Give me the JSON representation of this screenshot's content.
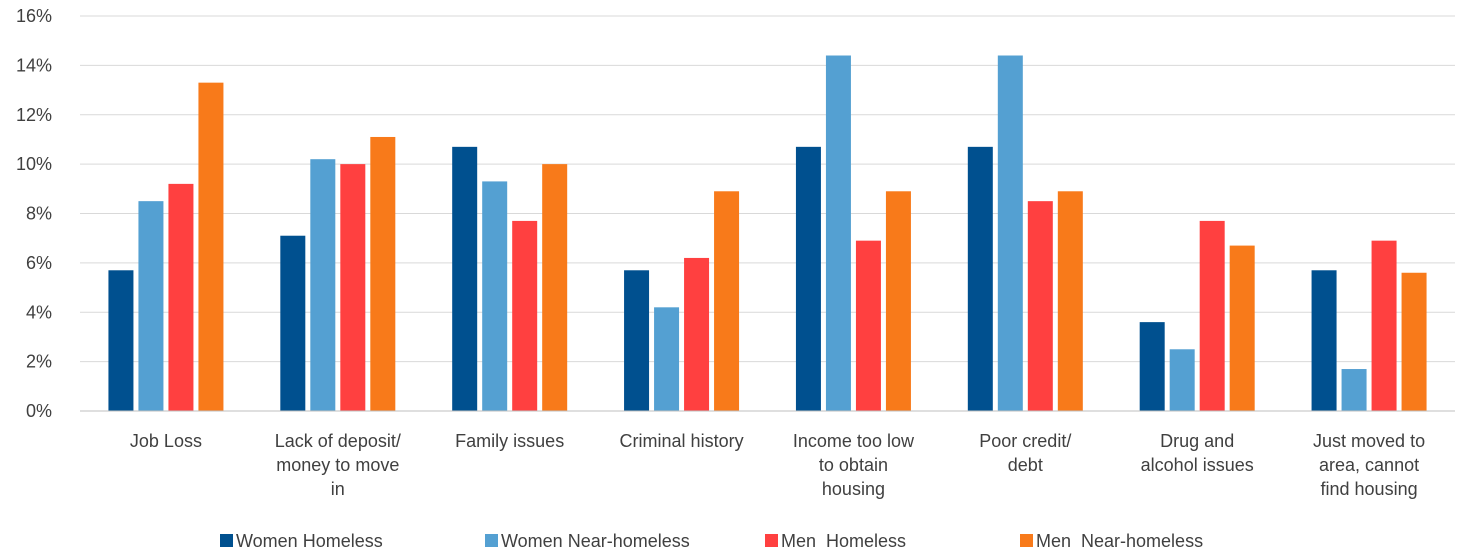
{
  "chart_data": {
    "type": "bar",
    "title": "",
    "xlabel": "",
    "ylabel": "",
    "ylim": [
      0,
      16
    ],
    "y_tick_values": [
      0,
      2,
      4,
      6,
      8,
      10,
      12,
      14,
      16
    ],
    "y_ticks": [
      "0%",
      "2%",
      "4%",
      "6%",
      "8%",
      "10%",
      "12%",
      "14%",
      "16%"
    ],
    "grid": true,
    "legend_position": "bottom",
    "categories": [
      [
        "Job Loss"
      ],
      [
        "Lack of deposit/",
        "money to move",
        "in"
      ],
      [
        "Family issues"
      ],
      [
        "Criminal history"
      ],
      [
        "Income too low",
        "to obtain",
        "housing"
      ],
      [
        "Poor credit/",
        "debt"
      ],
      [
        "Drug and",
        "alcohol issues"
      ],
      [
        "Just moved to",
        "area, cannot",
        "find housing"
      ]
    ],
    "series": [
      {
        "name": "Women Homeless",
        "color": "#00508f",
        "values": [
          5.7,
          7.1,
          10.7,
          5.7,
          10.7,
          10.7,
          3.6,
          5.7
        ]
      },
      {
        "name": "Women Near-homeless",
        "color": "#54a0d2",
        "values": [
          8.5,
          10.2,
          9.3,
          4.2,
          14.4,
          14.4,
          2.5,
          1.7
        ]
      },
      {
        "name": "Men  Homeless",
        "color": "#ff4040",
        "values": [
          9.2,
          10.0,
          7.7,
          6.2,
          6.9,
          8.5,
          7.7,
          6.9
        ]
      },
      {
        "name": "Men  Near-homeless",
        "color": "#f87a1a",
        "values": [
          13.3,
          11.1,
          10.0,
          8.9,
          8.9,
          8.9,
          6.7,
          5.6
        ]
      }
    ]
  }
}
